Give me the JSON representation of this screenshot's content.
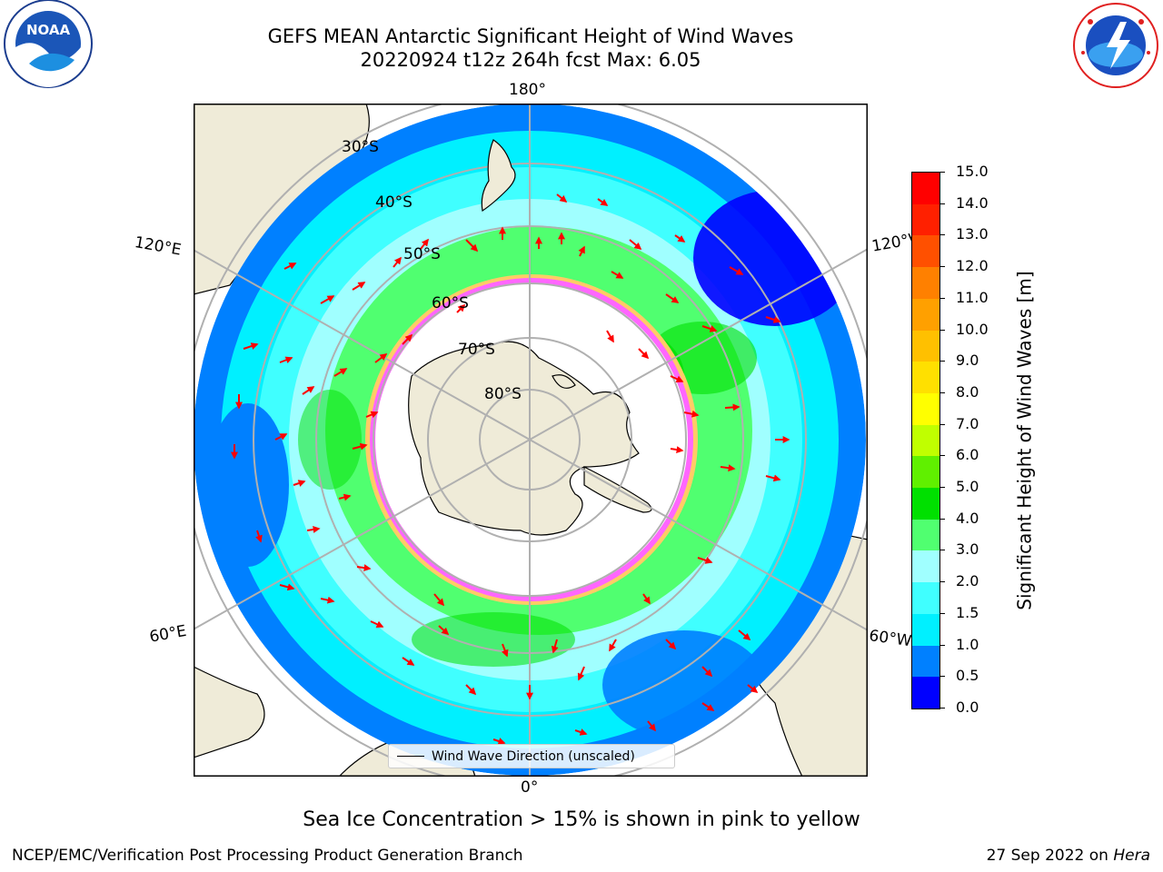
{
  "title": {
    "line1": "GEFS MEAN Antarctic Significant Height of Wind Waves",
    "line2": "20220924 t12z 264h fcst   Max: 6.05"
  },
  "logos": {
    "left": {
      "name": "noaa-logo",
      "text": "NOAA",
      "ring_text": "NATIONAL OCEANIC AND ATMOSPHERIC ADMINISTRATION · U.S. DEPARTMENT OF COMMERCE"
    },
    "right": {
      "name": "nws-logo",
      "ring_text": "NATIONAL WEATHER SERVICE"
    }
  },
  "map": {
    "projection": "south-polar-stereographic",
    "longitude_labels": {
      "top": "180°",
      "bottom": "0°",
      "left_upper": "120°E",
      "left_lower": "60°E",
      "right_upper": "120°W",
      "right_lower": "60°W"
    },
    "latitude_labels": [
      "30°S",
      "40°S",
      "50°S",
      "60°S",
      "70°S",
      "80°S"
    ],
    "colors": {
      "land": "#efebd8",
      "ice_edge": "#ff66ff",
      "arrows": "#ff0000",
      "grid": "#b0b0b0"
    },
    "legend_label": "Wind Wave Direction (unscaled)"
  },
  "colorbar": {
    "label": "Significant Height of Wind Waves [m]",
    "ticks": [
      "15.0",
      "14.0",
      "13.0",
      "12.0",
      "11.0",
      "10.0",
      "9.0",
      "8.0",
      "7.0",
      "6.0",
      "5.0",
      "4.0",
      "3.0",
      "2.0",
      "1.5",
      "1.0",
      "0.5",
      "0.0"
    ],
    "colors_bottom_to_top": [
      "#0000ff",
      "#0080ff",
      "#00f0ff",
      "#40ffff",
      "#a0ffff",
      "#50ff70",
      "#00e000",
      "#60f000",
      "#c0ff00",
      "#ffff00",
      "#ffe000",
      "#ffc000",
      "#ffa000",
      "#ff8000",
      "#ff5000",
      "#ff2000",
      "#ff0000"
    ]
  },
  "caption": "Sea Ice Concentration > 15% is shown in pink to yellow",
  "footer": {
    "left": "NCEP/EMC/Verification Post Processing Product Generation Branch",
    "right_prefix": "27 Sep 2022 on ",
    "right_host": "Hera"
  }
}
